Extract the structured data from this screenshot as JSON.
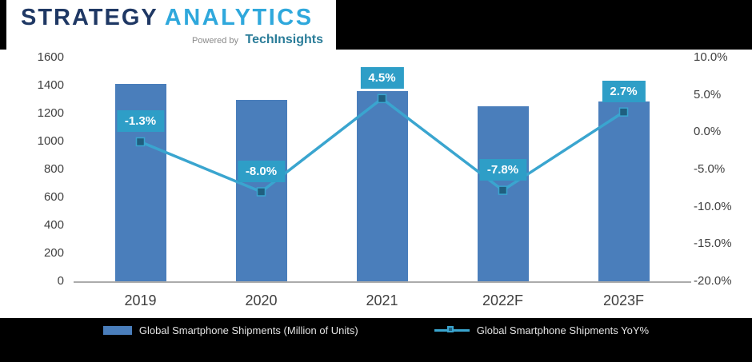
{
  "logo": {
    "strategy": "STRATEGY",
    "analytics": "ANALYTICS",
    "powered_by": "Powered by",
    "techinsights": "TechInsights"
  },
  "chart_data": {
    "type": "bar",
    "subtype": "combo-bar-line",
    "categories": [
      "2019",
      "2020",
      "2021",
      "2022F",
      "2023F"
    ],
    "series": [
      {
        "name": "Global Smartphone Shipments (Million of Units)",
        "type": "bar",
        "axis": "left",
        "values": [
          1413,
          1300,
          1358,
          1251,
          1285
        ]
      },
      {
        "name": "Global Smartphone Shipments YoY%",
        "type": "line",
        "axis": "right",
        "values": [
          -1.3,
          -8.0,
          4.5,
          -7.8,
          2.7
        ],
        "point_labels": [
          "-1.3%",
          "-8.0%",
          "4.5%",
          "-7.8%",
          "2.7%"
        ]
      }
    ],
    "left_axis": {
      "min": 0,
      "max": 1600,
      "ticks": [
        1600,
        1400,
        1200,
        1000,
        800,
        600,
        400,
        200,
        0
      ]
    },
    "right_axis": {
      "min": -20,
      "max": 10,
      "ticks": [
        "10.0%",
        "5.0%",
        "0.0%",
        "-5.0%",
        "-10.0%",
        "-15.0%",
        "-20.0%"
      ]
    },
    "legend": [
      "Global Smartphone Shipments (Million of Units)",
      "Global Smartphone Shipments YoY%"
    ],
    "legend_position": "bottom",
    "grid": false,
    "colors": {
      "bar": "#4A7EBB",
      "line": "#3AA5CF",
      "marker_fill": "#1F5F7F",
      "point_label_bg": "#2E9EC7",
      "point_label_text": "#FFFFFF",
      "axis_text": "#404040",
      "logo_navy": "#1F3864",
      "logo_cyan": "#2FA8DC",
      "techinsights_teal": "#2B7D99",
      "background": "#000000",
      "panel": "#FFFFFF"
    }
  }
}
